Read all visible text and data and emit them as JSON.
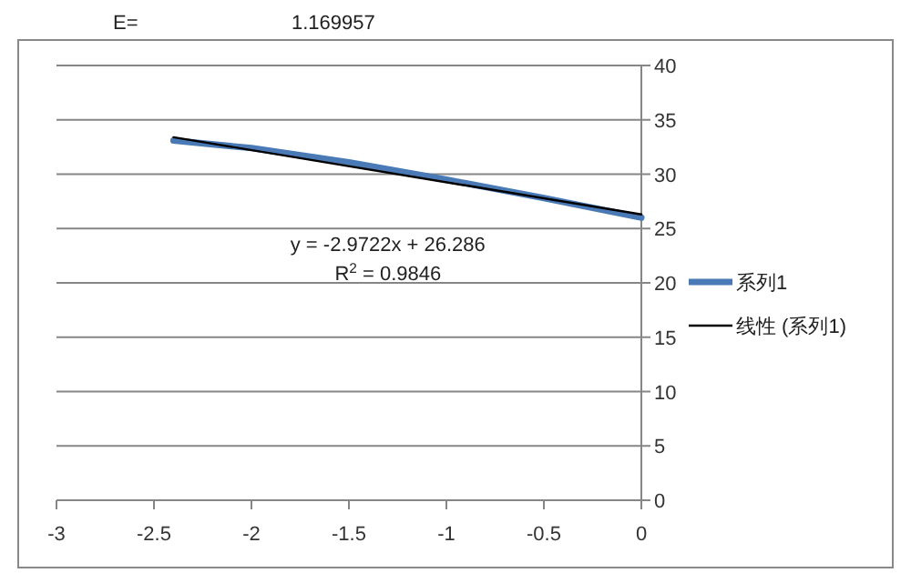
{
  "chart_data": {
    "type": "line",
    "series": [
      {
        "name": "系列1",
        "color": "#4a7ab5",
        "x": [
          -2.4,
          -2.0,
          -1.5,
          -1.0,
          -0.5,
          0
        ],
        "values": [
          33.1,
          32.4,
          31.1,
          29.5,
          27.8,
          26.0
        ]
      },
      {
        "name": "线性 (系列1)",
        "color": "#000000",
        "type": "line",
        "x": [
          -2.4,
          0
        ],
        "values": [
          33.4,
          26.3
        ]
      }
    ],
    "xlim": [
      -3,
      0
    ],
    "xticks": [
      -3,
      -2.5,
      -2,
      -1.5,
      -1,
      -0.5,
      0
    ],
    "ylim": [
      0,
      40
    ],
    "yticks": [
      0,
      5,
      10,
      15,
      20,
      25,
      30,
      35,
      40
    ],
    "grid": "y",
    "legend": "right",
    "annotations": [
      "E=",
      "1.169957",
      "y = -2.9722x + 26.286",
      "R$^{2}$ = 0.9846"
    ]
  }
}
